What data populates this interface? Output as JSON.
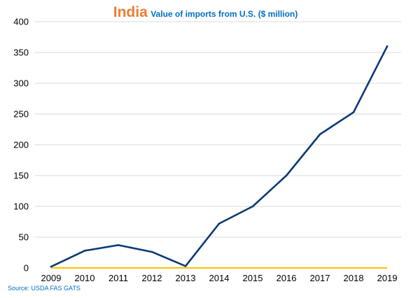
{
  "colors": {
    "title": "#ED7D31",
    "subtitle": "#0070C0",
    "source": "#0070C0",
    "series_line": "#0B3A75",
    "baseline": "#FFC000",
    "grid": "#D9D9D9"
  },
  "source_text": "Source: USDA FAS GATS",
  "chart_data": {
    "type": "line",
    "title": "India",
    "subtitle": "Value of imports from U.S. ($ million)",
    "x": [
      "2009",
      "2010",
      "2011",
      "2012",
      "2013",
      "2014",
      "2015",
      "2016",
      "2017",
      "2018",
      "2019"
    ],
    "series": [
      {
        "values": [
          2,
          28,
          37,
          26,
          3,
          72,
          100,
          150,
          217,
          253,
          360
        ]
      }
    ],
    "yticks": [
      0,
      50,
      100,
      150,
      200,
      250,
      300,
      350,
      400
    ],
    "ylim": [
      0,
      400
    ],
    "grid": true,
    "legend": "none"
  }
}
